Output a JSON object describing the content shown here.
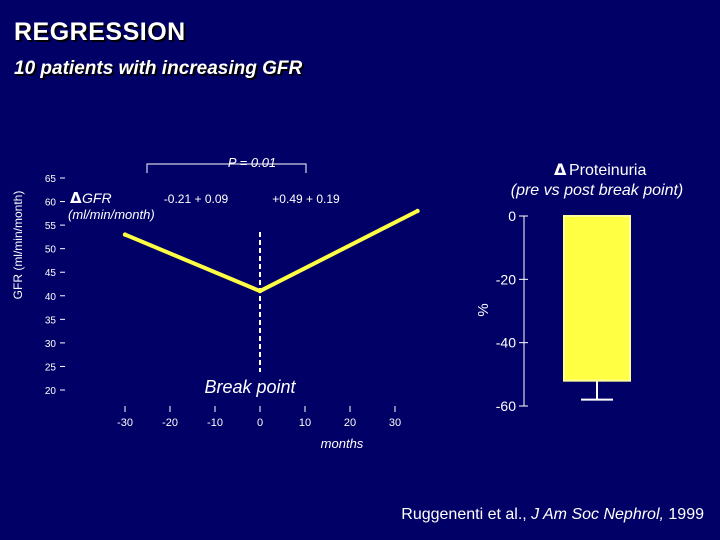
{
  "page": {
    "title": "REGRESSION",
    "subtitle": "10 patients with increasing GFR"
  },
  "colors": {
    "background": "#000066",
    "line": "#ffff44",
    "bar_fill": "#ffff44",
    "bar_outline": "#ffff99",
    "text": "#ffffff"
  },
  "chart_data": [
    {
      "type": "line",
      "ylabel": "GFR (ml/min/month)",
      "xlabel": "months",
      "x_ticks": [
        "-30",
        "-20",
        "-10",
        "0",
        "10",
        "20",
        "30"
      ],
      "y_ticks": [
        "65",
        "60",
        "55",
        "50",
        "45",
        "40",
        "35",
        "30",
        "25",
        "20"
      ],
      "xlim": [
        -30,
        30
      ],
      "ylim": [
        20,
        65
      ],
      "series": [
        {
          "x": [
            -30,
            0,
            35
          ],
          "y": [
            53,
            41,
            58
          ]
        }
      ],
      "annotations": {
        "p_value": "P = 0.01",
        "delta_label_line1": "GFR",
        "delta_label_line2": "(ml/min/month)",
        "slope_pre": "-0.21 + 0.09",
        "slope_post": "+0.49 + 0.19",
        "breakpoint_label": "Break point"
      }
    },
    {
      "type": "bar",
      "title_line1": "Proteinuria",
      "title_line2": "(pre vs post break point)",
      "ylabel": "%",
      "y_ticks": [
        "0",
        "-20",
        "-40",
        "-60"
      ],
      "ylim": [
        -60,
        0
      ],
      "values": [
        -52
      ],
      "error": [
        6
      ]
    }
  ],
  "citation": {
    "authors": "Ruggenenti et al., ",
    "journal": "J Am Soc Nephrol,",
    "year": " 1999"
  }
}
